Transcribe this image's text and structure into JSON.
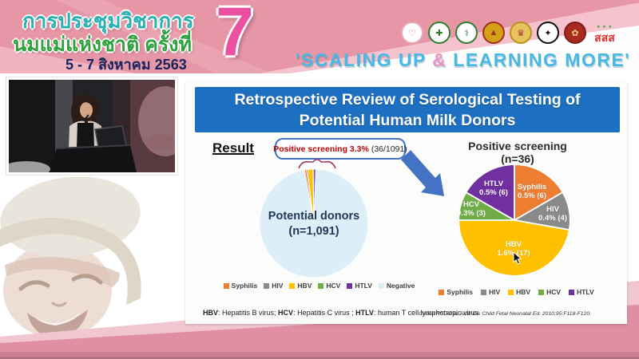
{
  "header": {
    "title_line1": "การประชุมวิชาการ",
    "title_line2": "นมแม่แห่งชาติ ครั้งที่",
    "date_line": "5 - 7 สิงหาคม 2563",
    "edition_number": "7",
    "tagline_open": "'SCALING UP ",
    "tagline_amp": "&",
    "tagline_close": " LEARNING MORE'",
    "sss_label": "สสส",
    "logo_names": [
      "mother-child-foundation-logo",
      "green-health-org-logo-1",
      "green-health-org-logo-2",
      "royal-college-emblem-logo",
      "royal-award-emblem-logo",
      "medical-association-logo",
      "red-society-emblem-logo",
      "thai-health-sss-logo"
    ]
  },
  "slide": {
    "title_line1": "Retrospective Review of Serological Testing of",
    "title_line2": "Potential Human Milk Donors",
    "result_label": "Result",
    "callout_highlight": "Positive screening 3.3%",
    "callout_detail": "(36/1091)",
    "footnote": {
      "k1": "HBV",
      "t1": ": Hepatitis B virus; ",
      "k2": "HCV",
      "t2": ": Hepatitis C virus ; ",
      "k3": "HTLV",
      "t3": ": human T cell lymphotropic virus"
    },
    "citation": "Cohen RS, et al. Arch Dis Child Fetal Neonatal Ed. 2010;95:F118-F120."
  },
  "chart_data": [
    {
      "type": "pie",
      "title": "Potential donors (n=1,091)",
      "center_label": [
        "Potential donors",
        "(n=1,091)"
      ],
      "total": 1091,
      "start_angle_deg": -10,
      "direction": "clockwise",
      "annotation": "Positive screening 3.3% (36/1091)",
      "legend_position": "bottom",
      "slices": [
        {
          "label": "Syphilis",
          "value": 6,
          "color": "#ED7D31"
        },
        {
          "label": "HIV",
          "value": 4,
          "color": "#8A8A8A"
        },
        {
          "label": "HBV",
          "value": 17,
          "color": "#FFC000"
        },
        {
          "label": "HCV",
          "value": 3,
          "color": "#70AD47"
        },
        {
          "label": "HTLV",
          "value": 6,
          "color": "#7030A0"
        },
        {
          "label": "Negative",
          "value": 1055,
          "color": "#DCEEF8"
        }
      ]
    },
    {
      "type": "pie",
      "title": "Positive screening (n=36)",
      "total": 36,
      "start_angle_deg": 0,
      "direction": "clockwise",
      "legend_position": "bottom",
      "slices": [
        {
          "label": "Syphilis",
          "value": 6,
          "pct_label": "0.5% (6)",
          "color": "#ED7D31"
        },
        {
          "label": "HIV",
          "value": 4,
          "pct_label": "0.4% (4)",
          "color": "#8A8A8A"
        },
        {
          "label": "HBV",
          "value": 17,
          "pct_label": "1.6% (17)",
          "color": "#FFC000"
        },
        {
          "label": "HCV",
          "value": 3,
          "pct_label": "0.3% (3)",
          "color": "#70AD47"
        },
        {
          "label": "HTLV",
          "value": 6,
          "pct_label": "0.5% (6)",
          "color": "#7030A0"
        }
      ]
    }
  ],
  "colors": {
    "banner_blue": "#1d6fc1",
    "arrow_blue": "#4472c4",
    "callout_red": "#c00000",
    "callout_border_blue": "#4472c4",
    "header_pink": "#e696a4",
    "bottom_band_pink": "#e08fa2",
    "edition_pink": "#e9509f",
    "tagline_blue": "#46b9e5",
    "tagline_amp_pink": "#f090c0",
    "negative_light_blue": "#DCEEF8"
  }
}
